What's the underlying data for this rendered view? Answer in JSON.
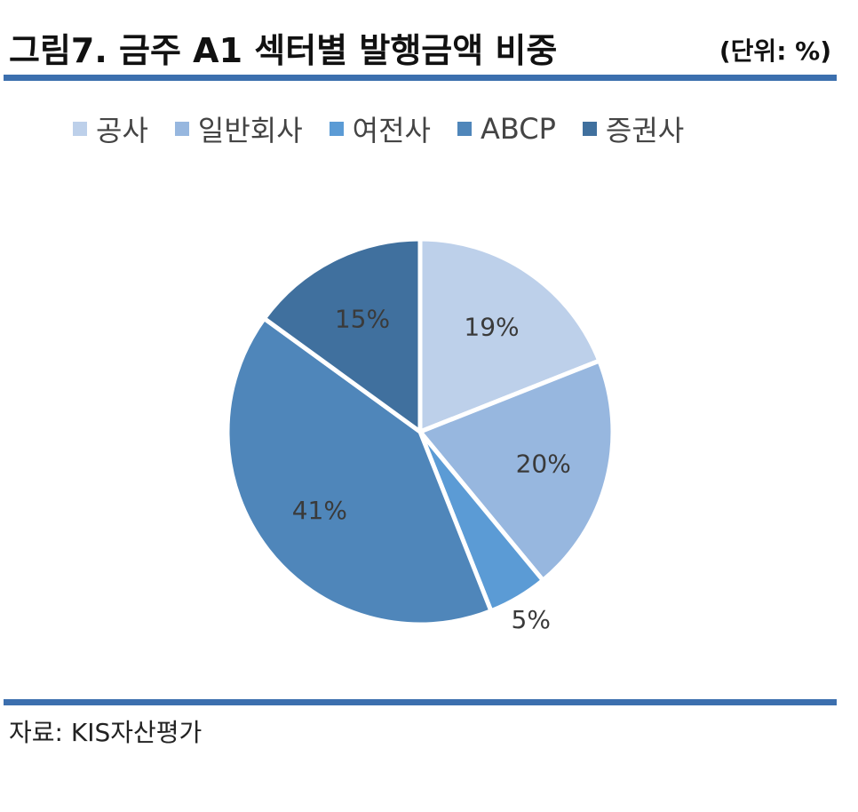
{
  "header": {
    "title": "그림7. 금주 A1 섹터별 발행금액 비중",
    "unit": "(단위: %)"
  },
  "footer": {
    "source": "자료: KIS자산평가"
  },
  "colors": {
    "rule": "#3c6fae"
  },
  "chart_data": {
    "type": "pie",
    "legend_position": "top",
    "categories": [
      "공사",
      "일반회사",
      "여전사",
      "ABCP",
      "증권사"
    ],
    "values": [
      19,
      20,
      5,
      41,
      15
    ],
    "labels": [
      "19%",
      "20%",
      "5%",
      "41%",
      "15%"
    ],
    "colors": [
      "#bdd0ea",
      "#97b7df",
      "#5b9bd5",
      "#4f86ba",
      "#40709e"
    ]
  }
}
